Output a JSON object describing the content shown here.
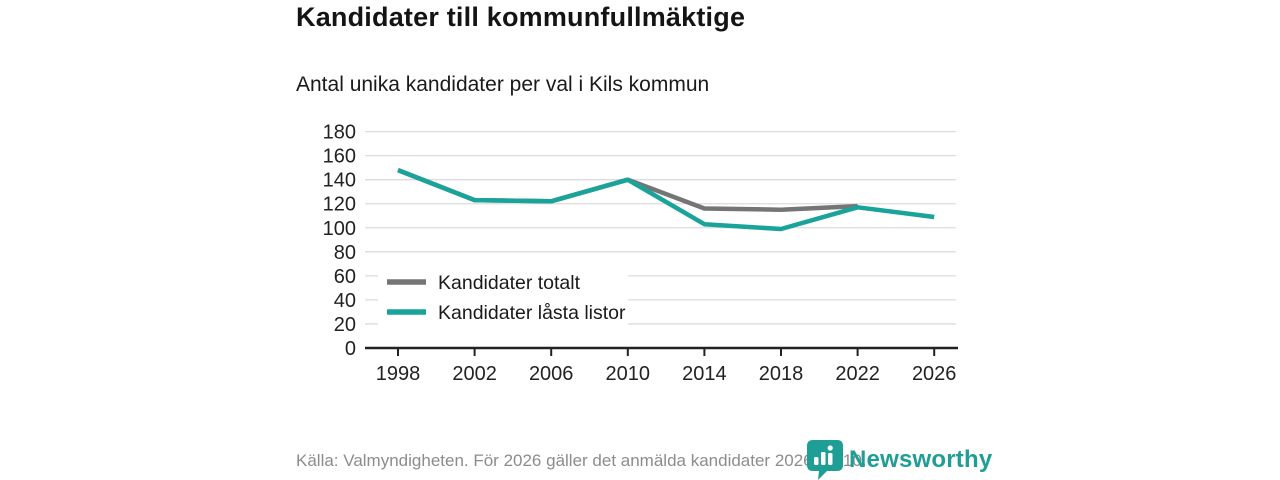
{
  "header": {
    "title": "Kandidater till kommunfullmäktige",
    "subtitle": "Antal unika kandidater per val i Kils kommun"
  },
  "chart_data": {
    "type": "line",
    "title": "Kandidater till kommunfullmäktige",
    "subtitle": "Antal unika kandidater per val i Kils kommun",
    "categories": [
      "1998",
      "2002",
      "2006",
      "2010",
      "2014",
      "2018",
      "2022",
      "2026"
    ],
    "series": [
      {
        "name": "Kandidater totalt",
        "color": "#757575",
        "values": [
          148,
          123,
          122,
          140,
          116,
          115,
          118,
          null
        ]
      },
      {
        "name": "Kandidater låsta listor",
        "color": "#1aa39a",
        "values": [
          148,
          123,
          122,
          140,
          103,
          99,
          117,
          109
        ]
      }
    ],
    "xlabel": "",
    "ylabel": "",
    "ylim": [
      0,
      180
    ],
    "ytick_step": 20,
    "grid": true,
    "grid_color": "#dcdcdc",
    "axis_color": "#222222",
    "label_color": "#222222",
    "legend_position": "inside-bottom-left"
  },
  "footer": {
    "source": "Källa: Valmyndigheten. För 2026 gäller det anmälda kandidater 2026-04-10."
  },
  "logo": {
    "text": "Newsworthy",
    "color": "#1f9e96"
  }
}
